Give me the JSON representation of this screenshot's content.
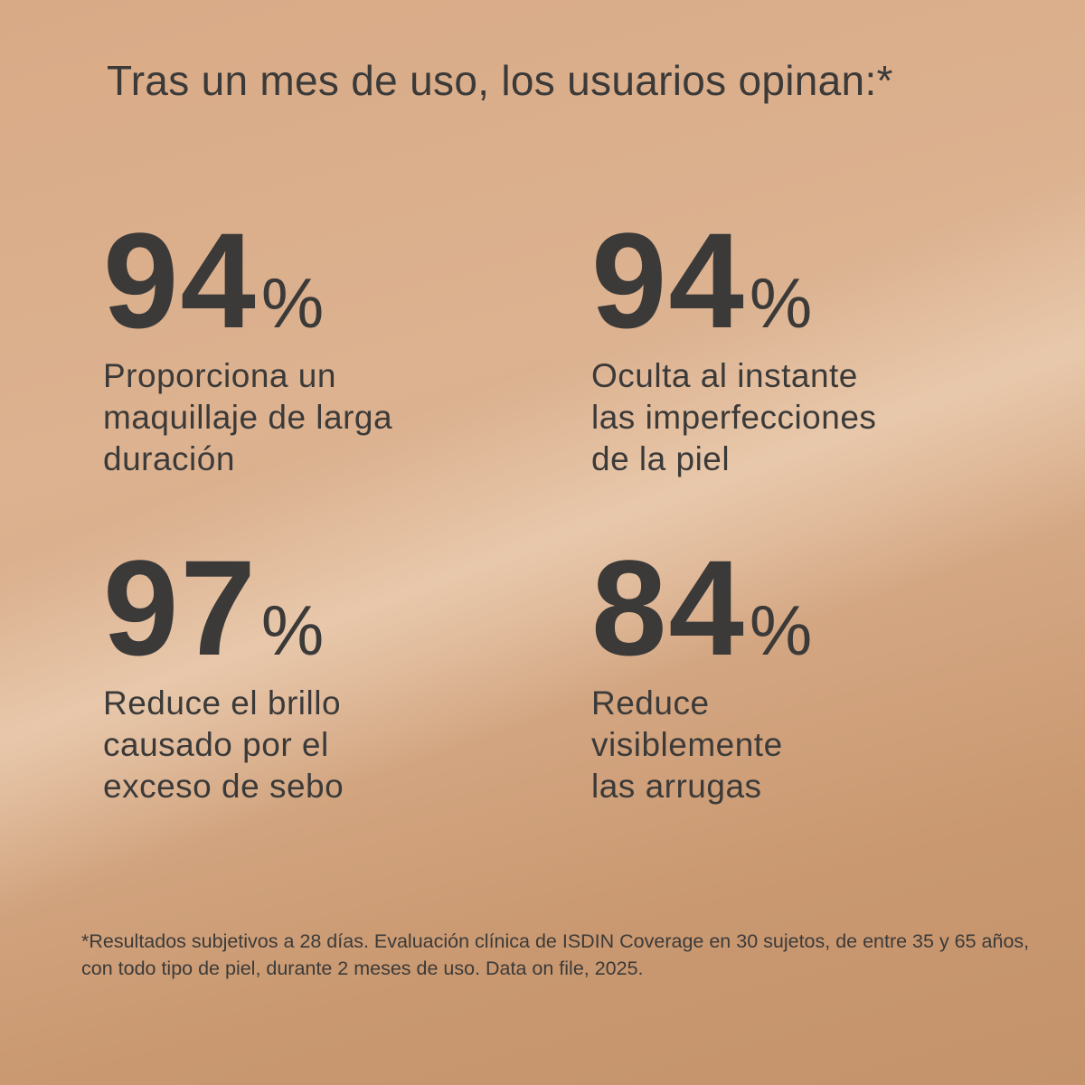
{
  "title": "Tras un mes de uso, los usuarios opinan:*",
  "stats": [
    {
      "value": "94",
      "unit": "%",
      "description": "Proporciona un\nmaquillaje de larga\nduración"
    },
    {
      "value": "94",
      "unit": "%",
      "description": "Oculta al instante\nlas imperfecciones\nde la piel"
    },
    {
      "value": "97",
      "unit": "%",
      "description": "Reduce el brillo\ncausado por el\nexceso de sebo"
    },
    {
      "value": "84",
      "unit": "%",
      "description": "Reduce\nvisiblemente\nlas arrugas"
    }
  ],
  "footnote": "*Resultados subjetivos a 28 días. Evaluación clínica de ISDIN Coverage en 30 sujetos, de entre 35 y 65 años, con todo tipo de piel, durante 2 meses de uso. Data on file, 2025.",
  "colors": {
    "text": "#3b3a39",
    "background": "#d9aa86"
  }
}
